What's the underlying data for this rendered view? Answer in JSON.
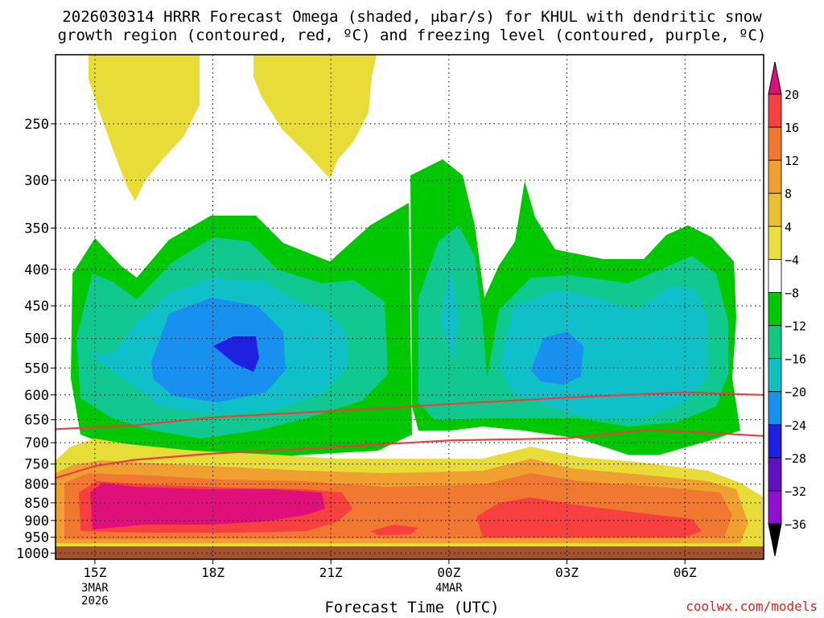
{
  "chart_data": {
    "type": "heatmap",
    "title": "2026030314 HRRR Forecast Omega (shaded, μbar/s) for KHUL with dendritic snow",
    "subtitle": "growth region (contoured, red, ºC) and freezing level (contoured, purple, ºC)",
    "xlabel": "Forecast Time (UTC)",
    "ylabel": "",
    "x_ticks": [
      {
        "label": "15Z",
        "sub": [
          "3MAR",
          "2026"
        ]
      },
      {
        "label": "18Z",
        "sub": []
      },
      {
        "label": "21Z",
        "sub": []
      },
      {
        "label": "00Z",
        "sub": [
          "4MAR"
        ]
      },
      {
        "label": "03Z",
        "sub": []
      },
      {
        "label": "06Z",
        "sub": []
      }
    ],
    "x_tick_hours": [
      0,
      3,
      6,
      9,
      12,
      15
    ],
    "xlim_hours": [
      -1,
      17
    ],
    "y_ticks": [
      250,
      300,
      350,
      400,
      450,
      500,
      550,
      600,
      650,
      700,
      750,
      800,
      850,
      900,
      950,
      1000
    ],
    "ylim_hPa": [
      200,
      1020
    ],
    "y_scale": "log",
    "grid": true,
    "colorbar": {
      "labels": [
        "20",
        "16",
        "12",
        "8",
        "4",
        "−4",
        "−8",
        "−12",
        "−16",
        "−20",
        "−24",
        "−28",
        "−32",
        "−36"
      ],
      "colors": [
        "#ff3f8f",
        "#f84040",
        "#f07830",
        "#f0a030",
        "#e8c030",
        "#e8e040",
        "#ffffff",
        "#00c800",
        "#10c880",
        "#10c0c0",
        "#1890f0",
        "#2020e0",
        "#6010c0",
        "#9010d0",
        "#b0b0b0"
      ],
      "top_arrow_color": "#e0107a",
      "bottom_arrow_color": "#000000"
    },
    "dgz_lines": [
      {
        "name": "upper",
        "color": "#e84040",
        "points": [
          [
            -1,
            670
          ],
          [
            1,
            662
          ],
          [
            3,
            645
          ],
          [
            6,
            632
          ],
          [
            9,
            618
          ],
          [
            12,
            605
          ],
          [
            15,
            595
          ],
          [
            17,
            600
          ]
        ]
      },
      {
        "name": "lower",
        "color": "#e84040",
        "points": [
          [
            -1,
            785
          ],
          [
            0,
            755
          ],
          [
            1,
            740
          ],
          [
            3,
            725
          ],
          [
            6,
            710
          ],
          [
            9,
            695
          ],
          [
            12,
            690
          ],
          [
            14,
            672
          ],
          [
            15,
            675
          ],
          [
            17,
            685
          ]
        ]
      }
    ],
    "terrain": {
      "color": "#a0522d",
      "top_hPa": 1000
    }
  },
  "credit": "coolwx.com/models"
}
